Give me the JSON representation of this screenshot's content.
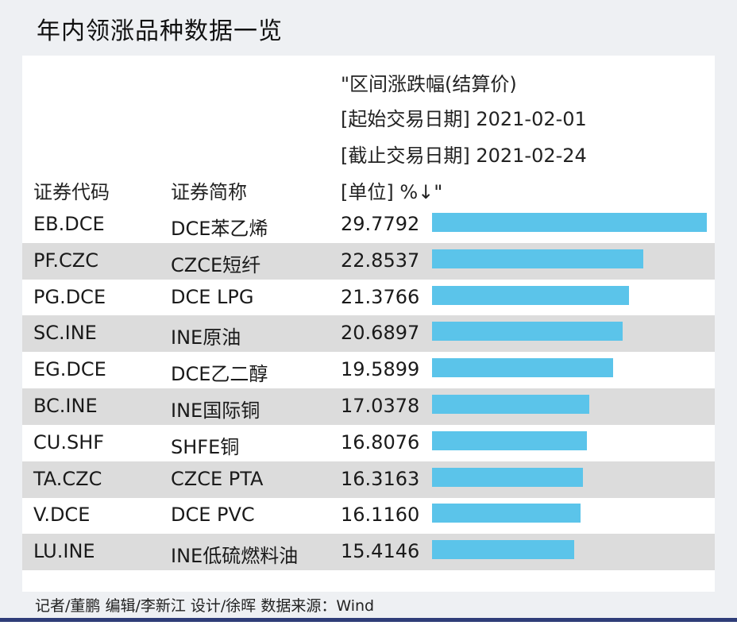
{
  "title": "年内领涨品种数据一览",
  "header_lines": [
    "\"区间涨跌幅(结算价)",
    "[起始交易日期] 2021-02-01",
    "[截止交易日期] 2021-02-24",
    "[单位] %↓\""
  ],
  "columns": {
    "code": "证券代码",
    "name": "证券简称"
  },
  "chart_data": {
    "type": "bar",
    "orientation": "horizontal",
    "xlim": [
      0,
      29.7792
    ],
    "rows": [
      {
        "code": "EB.DCE",
        "name": "DCE苯乙烯",
        "value": 29.7792,
        "label": "29.7792"
      },
      {
        "code": "PF.CZC",
        "name": "CZCE短纤",
        "value": 22.8537,
        "label": "22.8537"
      },
      {
        "code": "PG.DCE",
        "name": "DCE LPG",
        "value": 21.3766,
        "label": "21.3766"
      },
      {
        "code": "SC.INE",
        "name": "INE原油",
        "value": 20.6897,
        "label": "20.6897"
      },
      {
        "code": "EG.DCE",
        "name": "DCE乙二醇",
        "value": 19.5899,
        "label": "19.5899"
      },
      {
        "code": "BC.INE",
        "name": "INE国际铜",
        "value": 17.0378,
        "label": "17.0378"
      },
      {
        "code": "CU.SHF",
        "name": "SHFE铜",
        "value": 16.8076,
        "label": "16.8076"
      },
      {
        "code": "TA.CZC",
        "name": "CZCE PTA",
        "value": 16.3163,
        "label": "16.3163"
      },
      {
        "code": "V.DCE",
        "name": "DCE PVC",
        "value": 16.116,
        "label": "16.1160"
      },
      {
        "code": "LU.INE",
        "name": "INE低硫燃料油",
        "value": 15.4146,
        "label": "15.4146"
      }
    ]
  },
  "footer": "记者/董鹏  编辑/李新江  设计/徐晖  数据来源：Wind",
  "colors": {
    "bar": "#5bc4ea",
    "alt_row": "#dcdcdc",
    "bottom_line": "#2f3d78"
  }
}
